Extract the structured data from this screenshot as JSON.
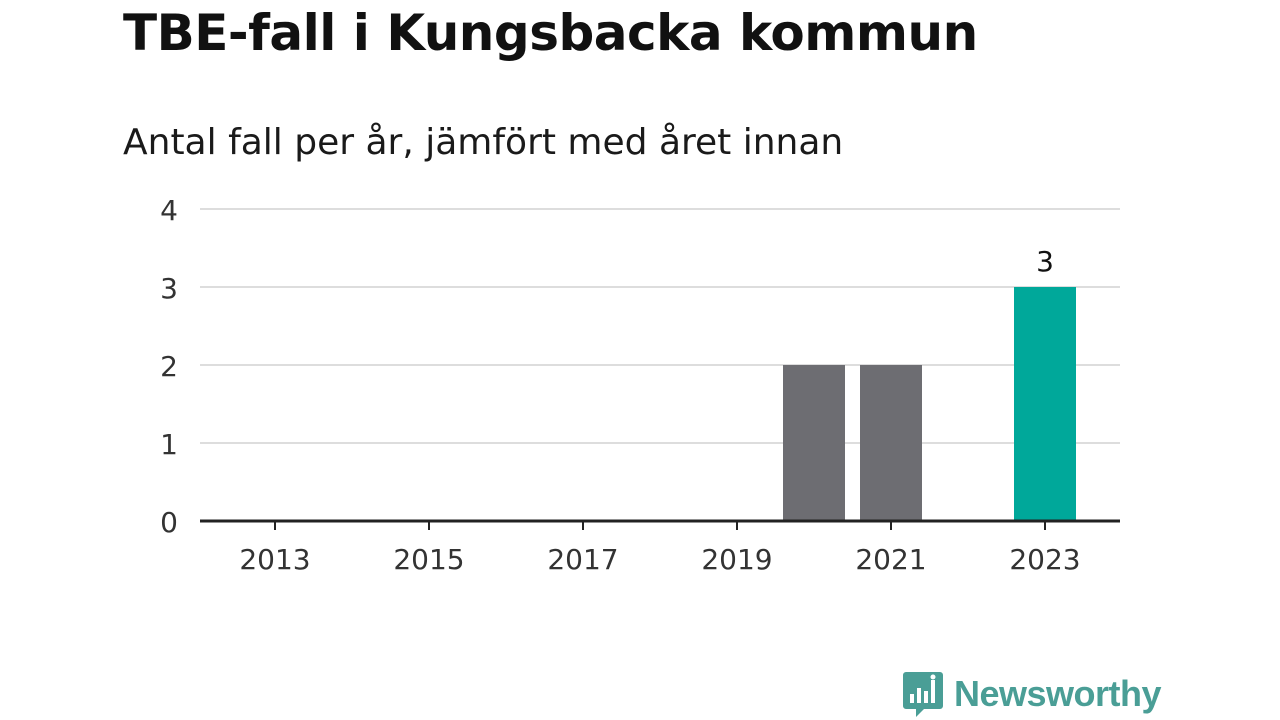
{
  "title": "TBE-fall i Kungsbacka kommun",
  "subtitle": "Antal fall per år, jämfört med året innan",
  "brand": {
    "name": "Newsworthy",
    "color": "#4a9e96",
    "icon": "newsworthy-logo-icon"
  },
  "colors": {
    "bar_previous": "#6d6d72",
    "bar_current": "#00a89a",
    "grid": "#dddddd",
    "axis": "#222222",
    "tick_text": "#333333"
  },
  "chart_data": {
    "type": "bar",
    "x": [
      2013,
      2014,
      2015,
      2016,
      2017,
      2018,
      2019,
      2020,
      2021,
      2022,
      2023
    ],
    "values": [
      0,
      0,
      0,
      0,
      0,
      0,
      0,
      2,
      2,
      0,
      3
    ],
    "highlight": 2023,
    "x_tick_labels": [
      "2013",
      "2015",
      "2017",
      "2019",
      "2021",
      "2023"
    ],
    "y_ticks": [
      0,
      1,
      2,
      3,
      4
    ],
    "ylim": [
      0,
      4
    ],
    "grid": true,
    "data_labels": [
      {
        "x": 2023,
        "label": "3"
      }
    ]
  }
}
